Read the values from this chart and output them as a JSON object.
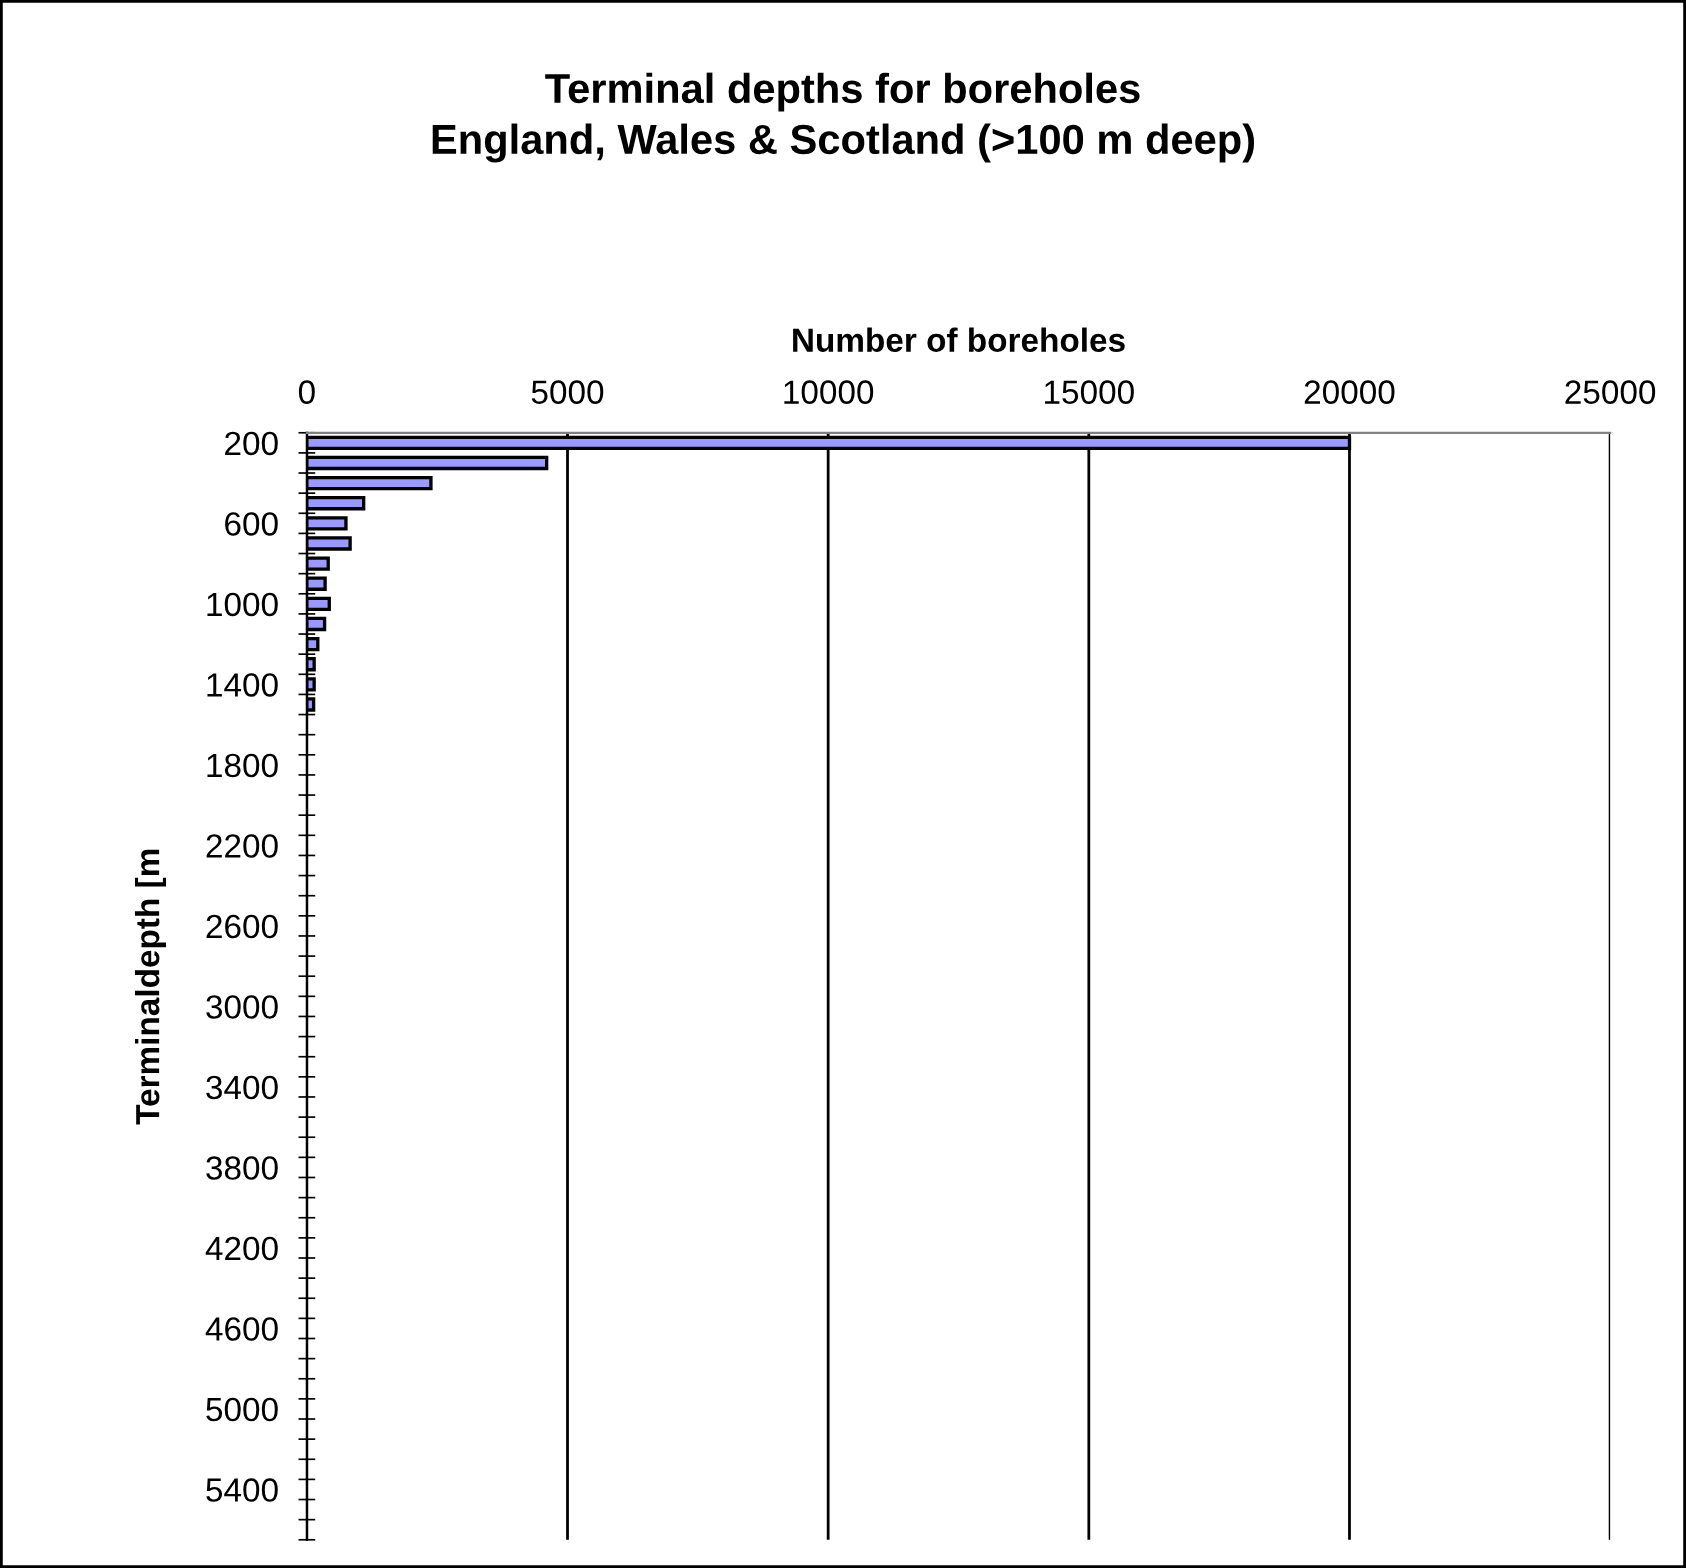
{
  "chart_data": {
    "type": "bar",
    "orientation": "horizontal",
    "title": "Terminal depths for boreholes\nEngland, Wales & Scotland (>100 m deep)",
    "xlabel": "Number of boreholes",
    "ylabel": "Terminaldepth [m",
    "categories": [
      "200",
      null,
      null,
      null,
      "600",
      null,
      null,
      null,
      "1000",
      null,
      null,
      null,
      "1400",
      null,
      null,
      null,
      "1800",
      null,
      null,
      null,
      "2200",
      null,
      null,
      null,
      "2600",
      null,
      null,
      null,
      "3000",
      null,
      null,
      null,
      "3400",
      null,
      null,
      null,
      "3800",
      null,
      null,
      null,
      "4200",
      null,
      null,
      null,
      "4600",
      null,
      null,
      null,
      "5000",
      null,
      null,
      null,
      "5400",
      null,
      null
    ],
    "values": [
      20000,
      4600,
      2380,
      1090,
      750,
      830,
      410,
      350,
      430,
      340,
      210,
      140,
      140,
      130,
      null,
      null,
      null,
      null,
      null,
      null,
      null,
      null,
      null,
      null,
      null,
      null,
      null,
      null,
      null,
      null,
      null,
      null,
      null,
      null,
      null,
      null,
      null,
      null,
      null,
      null,
      null,
      null,
      null,
      null,
      null,
      null,
      null,
      null,
      null,
      null,
      null,
      null,
      null,
      null,
      null
    ],
    "color": "#9999ff",
    "xlim": [
      0,
      25000
    ],
    "xticks": [
      0,
      5000,
      10000,
      15000,
      20000,
      25000
    ],
    "grid": "x",
    "legend": false
  }
}
